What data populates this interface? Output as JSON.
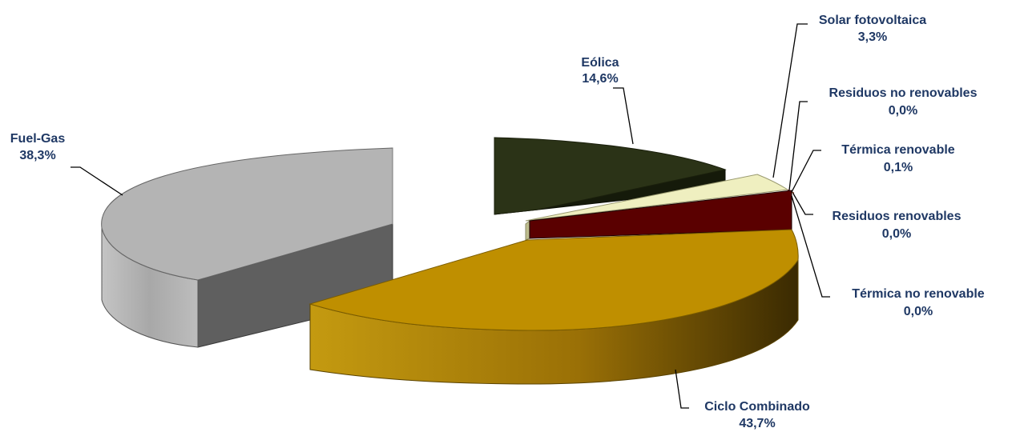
{
  "chart_data": {
    "type": "pie",
    "style": "exploded-3d",
    "slices": [
      {
        "name": "Eólica",
        "value": 14.6,
        "label": "14,6%",
        "color": "#2b3317"
      },
      {
        "name": "Solar fotovoltaica",
        "value": 3.3,
        "label": "3,3%",
        "color": "#efefc0"
      },
      {
        "name": "Residuos no renovables",
        "value": 0.0,
        "label": "0,0%",
        "color": "#8c1a1a"
      },
      {
        "name": "Térmica renovable",
        "value": 0.1,
        "label": "0,1%",
        "color": "#5c3a1a"
      },
      {
        "name": "Residuos renovables",
        "value": 0.0,
        "label": "0,0%",
        "color": "#4a0000"
      },
      {
        "name": "Térmica no renovable",
        "value": 0.0,
        "label": "0,0%",
        "color": "#5a0000"
      },
      {
        "name": "Ciclo Combinado",
        "value": 43.7,
        "label": "43,7%",
        "color": "#bf8f00"
      },
      {
        "name": "Fuel-Gas",
        "value": 38.3,
        "label": "38,3%",
        "color": "#b0b0b0"
      }
    ]
  }
}
